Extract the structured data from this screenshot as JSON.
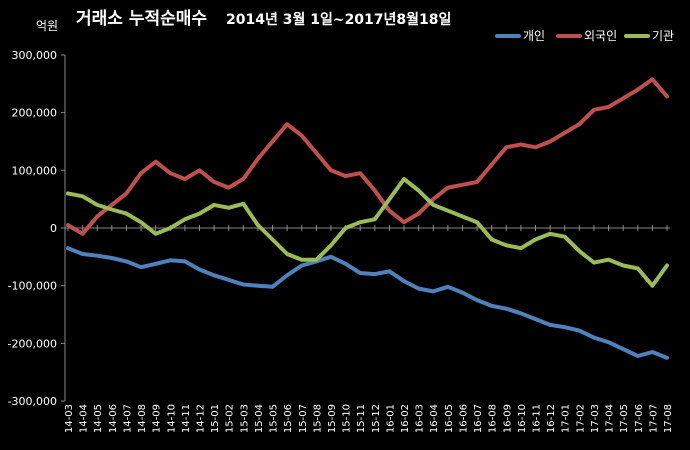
{
  "chart_data": {
    "type": "line",
    "title": "거래소 누적순매수",
    "subtitle": "2014년 3월 1일~2017년8월18일",
    "unit_label": "억원",
    "ylim": [
      -300000,
      300000
    ],
    "yticks": [
      -300000,
      -200000,
      -100000,
      0,
      100000,
      200000,
      300000
    ],
    "ytick_labels": [
      "-300,000",
      "-200,000",
      "-100,000",
      "0",
      "100,000",
      "200,000",
      "300,000"
    ],
    "categories": [
      "14-03",
      "14-04",
      "14-05",
      "14-06",
      "14-07",
      "14-08",
      "14-09",
      "14-10",
      "14-11",
      "14-12",
      "15-01",
      "15-02",
      "15-03",
      "15-04",
      "15-05",
      "15-06",
      "15-07",
      "15-08",
      "15-09",
      "15-10",
      "15-11",
      "15-12",
      "16-01",
      "16-02",
      "16-03",
      "16-04",
      "16-05",
      "16-06",
      "16-07",
      "16-08",
      "16-09",
      "16-10",
      "16-11",
      "16-12",
      "17-01",
      "17-02",
      "17-03",
      "17-04",
      "17-05",
      "17-06",
      "17-07",
      "17-08"
    ],
    "legend_position": "top-right",
    "series": [
      {
        "name": "개인",
        "color": "#4f81bd",
        "values": [
          -35000,
          -45000,
          -48000,
          -52000,
          -58000,
          -68000,
          -62000,
          -56000,
          -58000,
          -72000,
          -82000,
          -90000,
          -98000,
          -100000,
          -102000,
          -82000,
          -65000,
          -58000,
          -50000,
          -62000,
          -78000,
          -80000,
          -75000,
          -92000,
          -105000,
          -110000,
          -102000,
          -112000,
          -125000,
          -135000,
          -140000,
          -148000,
          -158000,
          -168000,
          -172000,
          -178000,
          -190000,
          -198000,
          -210000,
          -222000,
          -215000,
          -225000
        ]
      },
      {
        "name": "외국인",
        "color": "#c0504d",
        "values": [
          5000,
          -10000,
          20000,
          40000,
          60000,
          95000,
          115000,
          95000,
          85000,
          100000,
          80000,
          70000,
          85000,
          120000,
          150000,
          180000,
          160000,
          130000,
          100000,
          90000,
          95000,
          65000,
          30000,
          10000,
          25000,
          50000,
          70000,
          75000,
          80000,
          110000,
          140000,
          145000,
          140000,
          150000,
          165000,
          180000,
          205000,
          210000,
          225000,
          240000,
          258000,
          228000
        ]
      },
      {
        "name": "기관",
        "color": "#9bbb59",
        "values": [
          60000,
          55000,
          40000,
          32000,
          25000,
          10000,
          -10000,
          0,
          15000,
          25000,
          40000,
          35000,
          42000,
          5000,
          -20000,
          -45000,
          -55000,
          -55000,
          -30000,
          0,
          10000,
          15000,
          50000,
          85000,
          65000,
          40000,
          30000,
          20000,
          10000,
          -20000,
          -30000,
          -35000,
          -20000,
          -10000,
          -15000,
          -40000,
          -60000,
          -55000,
          -65000,
          -70000,
          -100000,
          -65000
        ]
      }
    ]
  }
}
